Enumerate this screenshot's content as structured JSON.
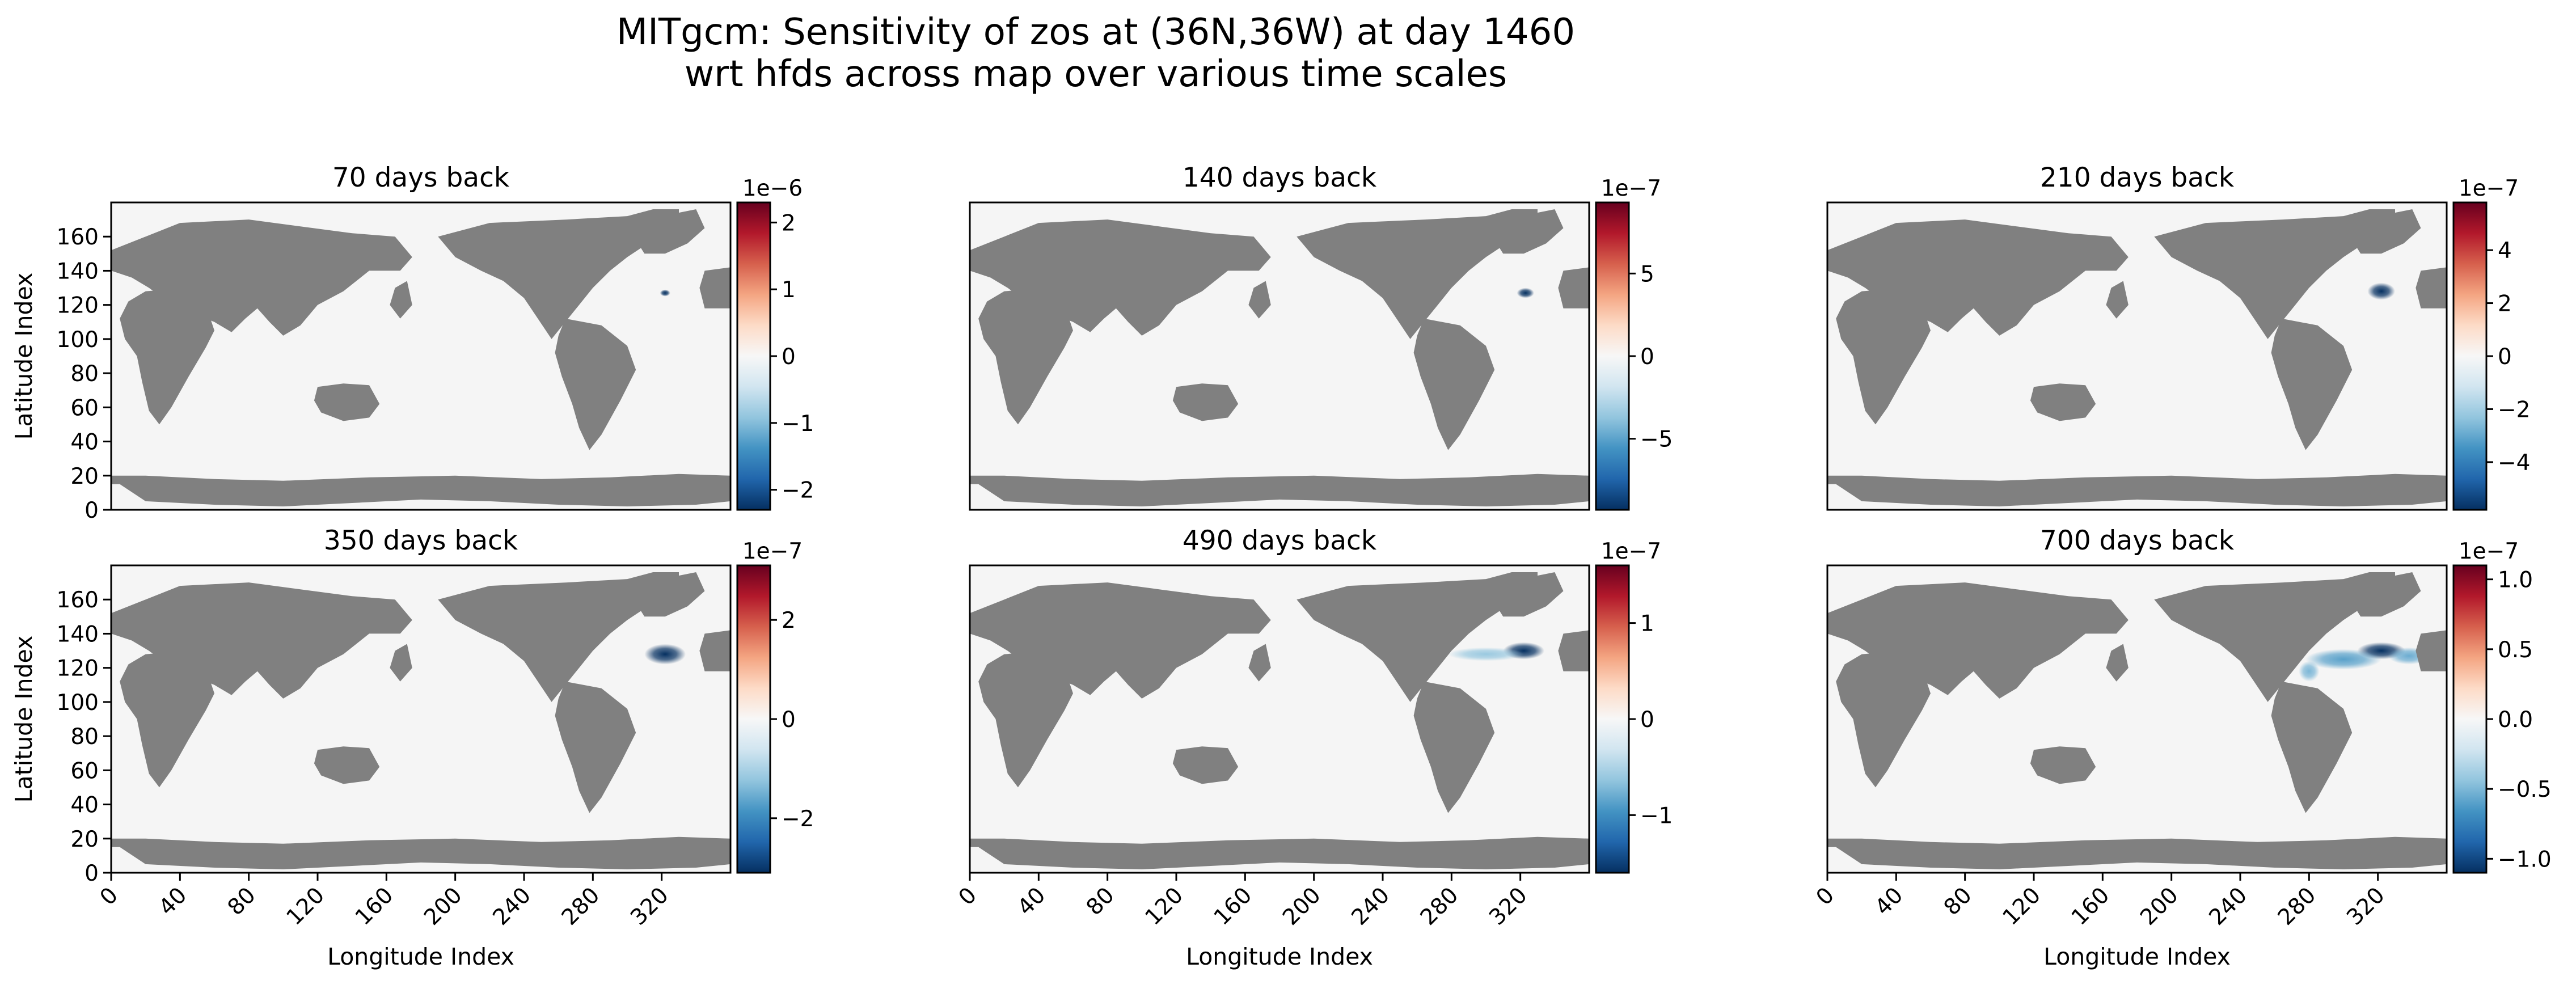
{
  "chart_data": {
    "type": "heatmap",
    "title": "MITgcm: Sensitivity of zos at (36N,36W) at day 1460",
    "subtitle": "wrt hfds across map over various time scales",
    "xlabel": "Longitude Index",
    "ylabel": "Latitude Index",
    "xlim": [
      0,
      360
    ],
    "ylim": [
      0,
      180
    ],
    "xticks": [
      "0",
      "40",
      "80",
      "120",
      "160",
      "200",
      "240",
      "280",
      "320"
    ],
    "yticks": [
      "0",
      "20",
      "40",
      "60",
      "80",
      "100",
      "120",
      "140",
      "160"
    ],
    "colormap": "RdBu_r",
    "land_color": "#808080",
    "ocean_color": "#f5f5f5",
    "panels": [
      {
        "title": "70 days back",
        "exponent": "1e−6",
        "vmin": -2.3,
        "vmax": 2.3,
        "cbar_ticks": [
          {
            "v": -2,
            "t": "−2"
          },
          {
            "v": -1,
            "t": "−1"
          },
          {
            "v": 0,
            "t": "0"
          },
          {
            "v": 1,
            "t": "1"
          },
          {
            "v": 2,
            "t": "2"
          }
        ],
        "blobs": [
          {
            "lon": 322,
            "lat": 127,
            "rx": 3,
            "ry": 2,
            "value": -2.3
          }
        ]
      },
      {
        "title": "140 days back",
        "exponent": "1e−7",
        "vmin": -9.3,
        "vmax": 9.3,
        "cbar_ticks": [
          {
            "v": -5,
            "t": "−5"
          },
          {
            "v": 0,
            "t": "0"
          },
          {
            "v": 5,
            "t": "5"
          }
        ],
        "blobs": [
          {
            "lon": 323,
            "lat": 127,
            "rx": 5,
            "ry": 3,
            "value": -9.3
          }
        ]
      },
      {
        "title": "210 days back",
        "exponent": "1e−7",
        "vmin": -5.8,
        "vmax": 5.8,
        "cbar_ticks": [
          {
            "v": -4,
            "t": "−4"
          },
          {
            "v": -2,
            "t": "−2"
          },
          {
            "v": 0,
            "t": "0"
          },
          {
            "v": 2,
            "t": "2"
          },
          {
            "v": 4,
            "t": "4"
          }
        ],
        "blobs": [
          {
            "lon": 322,
            "lat": 128,
            "rx": 8,
            "ry": 5,
            "value": -5.8
          }
        ]
      },
      {
        "title": "350 days back",
        "exponent": "1e−7",
        "vmin": -3.1,
        "vmax": 3.1,
        "cbar_ticks": [
          {
            "v": -2,
            "t": "−2"
          },
          {
            "v": 0,
            "t": "0"
          },
          {
            "v": 2,
            "t": "2"
          }
        ],
        "blobs": [
          {
            "lon": 322,
            "lat": 128,
            "rx": 12,
            "ry": 6,
            "value": -3.1
          }
        ]
      },
      {
        "title": "490 days back",
        "exponent": "1e−7",
        "vmin": -1.6,
        "vmax": 1.6,
        "cbar_ticks": [
          {
            "v": -1,
            "t": "−1"
          },
          {
            "v": 0,
            "t": "0"
          },
          {
            "v": 1,
            "t": "1"
          }
        ],
        "blobs": [
          {
            "lon": 322,
            "lat": 130,
            "rx": 12,
            "ry": 5,
            "value": -1.6
          },
          {
            "lon": 300,
            "lat": 128,
            "rx": 22,
            "ry": 4,
            "value": -0.6
          }
        ]
      },
      {
        "title": "700 days back",
        "exponent": "1e−7",
        "vmin": -1.1,
        "vmax": 1.1,
        "cbar_ticks": [
          {
            "v": -1,
            "t": "−1.0"
          },
          {
            "v": -0.5,
            "t": "−0.5"
          },
          {
            "v": 0,
            "t": "0.0"
          },
          {
            "v": 0.5,
            "t": "0.5"
          },
          {
            "v": 1,
            "t": "1.0"
          }
        ],
        "blobs": [
          {
            "lon": 322,
            "lat": 130,
            "rx": 14,
            "ry": 5,
            "value": -1.1
          },
          {
            "lon": 300,
            "lat": 125,
            "rx": 22,
            "ry": 6,
            "value": -0.6
          },
          {
            "lon": 280,
            "lat": 118,
            "rx": 6,
            "ry": 6,
            "value": -0.5
          },
          {
            "lon": 338,
            "lat": 127,
            "rx": 12,
            "ry": 5,
            "value": -0.55
          }
        ]
      }
    ]
  }
}
